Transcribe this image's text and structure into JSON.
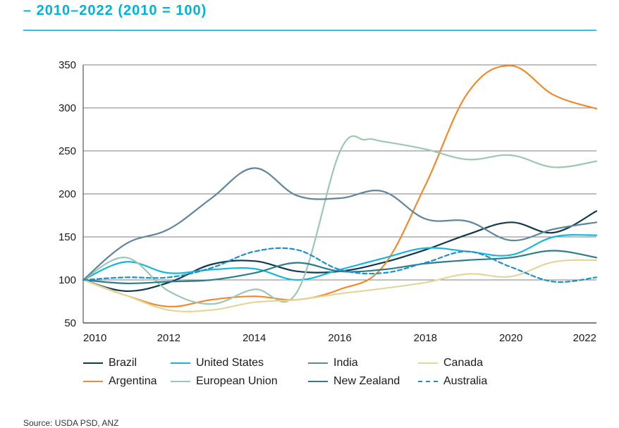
{
  "header": {
    "subtitle": "– 2010–2022 (2010 = 100)"
  },
  "chart_data": {
    "type": "line",
    "title": "",
    "subtitle": "– 2010–2022 (2010 = 100)",
    "xlabel": "",
    "ylabel": "",
    "xlim": [
      2010,
      2022
    ],
    "ylim": [
      50,
      350
    ],
    "yticks": [
      50,
      100,
      150,
      200,
      250,
      300,
      350
    ],
    "xticks": [
      2010,
      2012,
      2014,
      2016,
      2018,
      2020,
      2022
    ],
    "grid": "horizontal",
    "legend_position": "bottom",
    "series": [
      {
        "name": "Brazil",
        "color": "#0f3a4e",
        "dash": false,
        "x": [
          2010,
          2011,
          2012,
          2013,
          2014,
          2015,
          2016,
          2017,
          2018,
          2019,
          2020,
          2021,
          2022
        ],
        "y": [
          100,
          87,
          97,
          118,
          122,
          110,
          110,
          120,
          135,
          153,
          167,
          155,
          180
        ]
      },
      {
        "name": "Argentina",
        "color": "#f08a2c",
        "dash": false,
        "x": [
          2010,
          2011,
          2012,
          2013,
          2014,
          2015,
          2016,
          2017,
          2018,
          2019,
          2020,
          2021,
          2022
        ],
        "y": [
          100,
          82,
          69,
          77,
          81,
          77,
          89,
          115,
          210,
          318,
          349,
          315,
          299
        ]
      },
      {
        "name": "United States",
        "color": "#19b6d9",
        "dash": false,
        "x": [
          2010,
          2011,
          2012,
          2013,
          2014,
          2015,
          2016,
          2017,
          2018,
          2019,
          2020,
          2021,
          2022
        ],
        "y": [
          100,
          121,
          108,
          112,
          113,
          100,
          112,
          125,
          137,
          133,
          129,
          150,
          152
        ]
      },
      {
        "name": "European Union",
        "color": "#9cc8b2",
        "dash": false,
        "x": [
          2010,
          2011,
          2012,
          2013,
          2014,
          2015,
          2016,
          2016.6,
          2017,
          2018,
          2019,
          2020,
          2021,
          2022
        ],
        "y": [
          100,
          126,
          87,
          72,
          89,
          86,
          249,
          263,
          261,
          252,
          240,
          245,
          231,
          238
        ]
      },
      {
        "name": "India",
        "color": "#5f869b",
        "dash": false,
        "x": [
          2010,
          2011,
          2012,
          2013,
          2014,
          2015,
          2016,
          2017,
          2018,
          2019,
          2020,
          2021,
          2022
        ],
        "y": [
          100,
          142,
          159,
          195,
          230,
          198,
          195,
          203,
          171,
          168,
          146,
          159,
          167
        ]
      },
      {
        "name": "New Zealand",
        "color": "#2e7d8c",
        "dash": false,
        "x": [
          2010,
          2011,
          2012,
          2013,
          2014,
          2015,
          2016,
          2017,
          2018,
          2019,
          2020,
          2021,
          2022
        ],
        "y": [
          100,
          96,
          98,
          100,
          108,
          120,
          110,
          112,
          119,
          123,
          126,
          134,
          126
        ]
      },
      {
        "name": "Canada",
        "color": "#e2d79a",
        "dash": false,
        "x": [
          2010,
          2011,
          2012,
          2013,
          2014,
          2015,
          2016,
          2017,
          2018,
          2019,
          2020,
          2021,
          2022
        ],
        "y": [
          100,
          82,
          65,
          65,
          74,
          77,
          84,
          90,
          97,
          107,
          104,
          121,
          123
        ]
      },
      {
        "name": "Australia",
        "color": "#1f8fce",
        "dash": true,
        "x": [
          2010,
          2011,
          2012,
          2013,
          2014,
          2015,
          2016,
          2017,
          2018,
          2019,
          2020,
          2021,
          2022
        ],
        "y": [
          100,
          103,
          103,
          114,
          133,
          135,
          112,
          108,
          120,
          133,
          115,
          98,
          103
        ]
      }
    ]
  },
  "source": {
    "text": "Source: USDA PSD, ANZ"
  }
}
